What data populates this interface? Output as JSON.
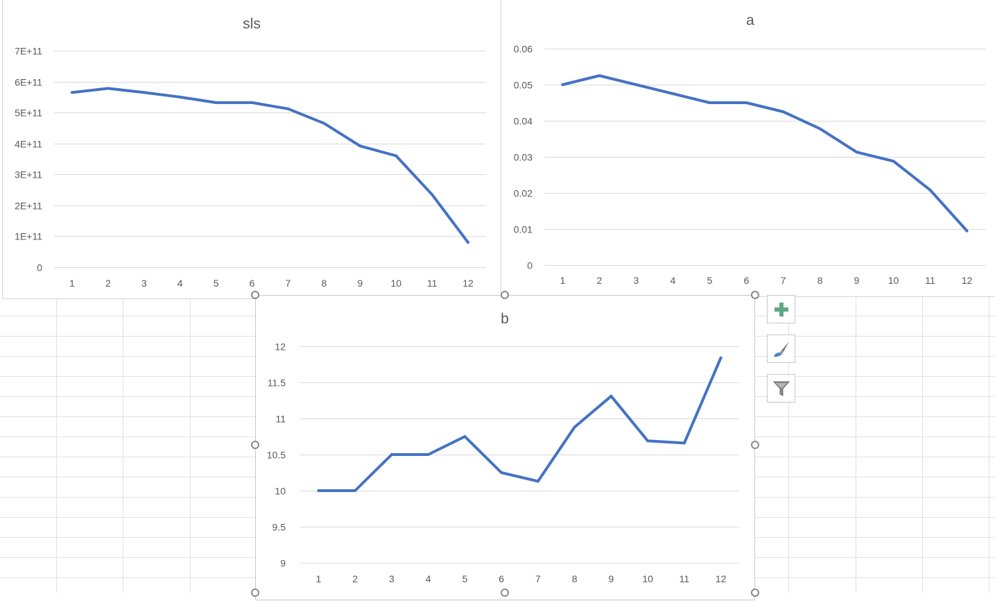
{
  "colors": {
    "series": "#4472c4",
    "gridline": "#d9d9d9",
    "axis_text": "#595959",
    "sheet_grid": "#e1e1e1"
  },
  "side_buttons": [
    {
      "name": "chart-elements-button",
      "icon": "plus-icon"
    },
    {
      "name": "chart-styles-button",
      "icon": "brush-icon"
    },
    {
      "name": "chart-filters-button",
      "icon": "funnel-icon"
    }
  ],
  "chart_data": [
    {
      "id": "sls",
      "type": "line",
      "title": "sls",
      "categories": [
        "1",
        "2",
        "3",
        "4",
        "5",
        "6",
        "7",
        "8",
        "9",
        "10",
        "11",
        "12"
      ],
      "series": [
        {
          "values": [
            565000000000,
            578000000000,
            565000000000,
            550000000000,
            532000000000,
            532000000000,
            512000000000,
            465000000000,
            392000000000,
            360000000000,
            235000000000,
            80000000000
          ]
        }
      ],
      "ylim": [
        0,
        700000000000
      ],
      "yticks": [
        0,
        100000000000,
        200000000000,
        300000000000,
        400000000000,
        500000000000,
        600000000000,
        700000000000
      ],
      "ytick_labels": [
        "0",
        "1E+11",
        "2E+11",
        "3E+11",
        "4E+11",
        "5E+11",
        "6E+11",
        "7E+11"
      ],
      "grid": true,
      "legend": "none"
    },
    {
      "id": "a",
      "type": "line",
      "title": "a",
      "categories": [
        "1",
        "2",
        "3",
        "4",
        "5",
        "6",
        "7",
        "8",
        "9",
        "10",
        "11",
        "12"
      ],
      "series": [
        {
          "values": [
            0.05,
            0.0525,
            0.05,
            0.0475,
            0.045,
            0.045,
            0.0425,
            0.0378,
            0.0313,
            0.0288,
            0.0208,
            0.0095
          ]
        }
      ],
      "ylim": [
        0,
        0.06
      ],
      "yticks": [
        0,
        0.01,
        0.02,
        0.03,
        0.04,
        0.05,
        0.06
      ],
      "ytick_labels": [
        "0",
        "0.01",
        "0.02",
        "0.03",
        "0.04",
        "0.05",
        "0.06"
      ],
      "grid": true,
      "legend": "none"
    },
    {
      "id": "b",
      "type": "line",
      "title": "b",
      "categories": [
        "1",
        "2",
        "3",
        "4",
        "5",
        "6",
        "7",
        "8",
        "9",
        "10",
        "11",
        "12"
      ],
      "series": [
        {
          "values": [
            10,
            10,
            10.5,
            10.5,
            10.75,
            10.25,
            10.13,
            10.88,
            11.31,
            10.69,
            10.66,
            11.84
          ]
        }
      ],
      "ylim": [
        9,
        12
      ],
      "yticks": [
        9,
        9.5,
        10,
        10.5,
        11,
        11.5,
        12
      ],
      "ytick_labels": [
        "9",
        "9.5",
        "10",
        "10.5",
        "11",
        "11.5",
        "12"
      ],
      "grid": true,
      "legend": "none"
    }
  ]
}
